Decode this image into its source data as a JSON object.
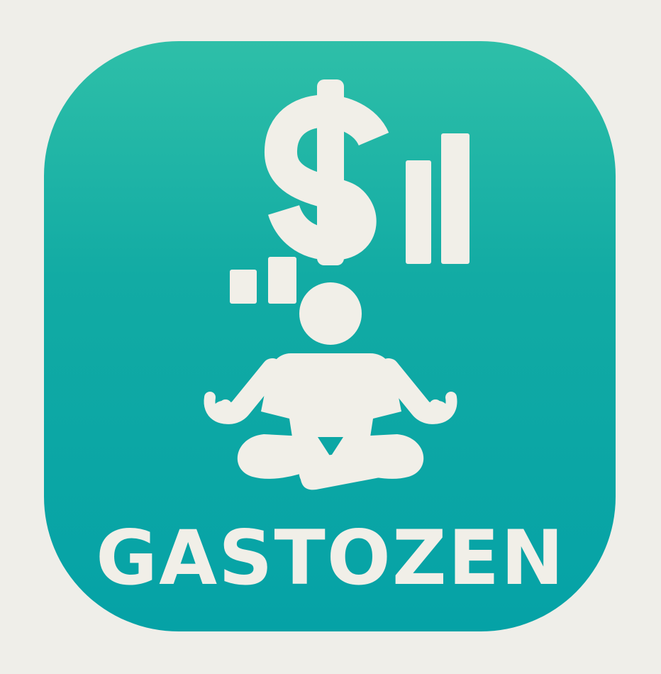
{
  "brand": {
    "name": "GASTOZEN"
  },
  "icon": {
    "symbols": [
      "dollar-sign-icon",
      "bar-chart-icon",
      "meditating-person-icon"
    ]
  },
  "colors": {
    "background": "#efeee9",
    "tile_top": "#2ebfa8",
    "tile_bottom": "#05a2a6",
    "glyph": "#f1efe8"
  }
}
